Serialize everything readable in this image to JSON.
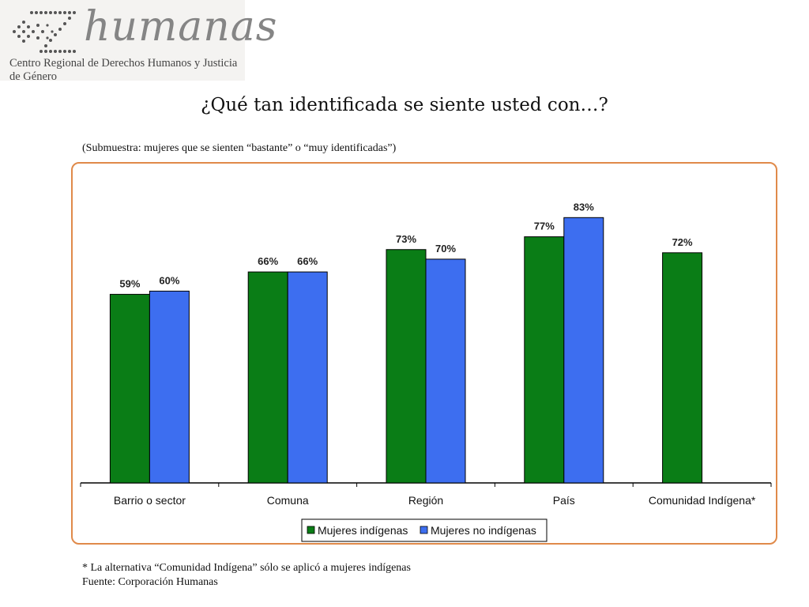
{
  "logo": {
    "wordmark": "humanas",
    "subtitle": "Centro Regional de Derechos Humanos y Justicia de Género"
  },
  "title": "¿Qué tan identificada se siente usted con…?",
  "subtitle": "(Submuestra: mujeres que se sienten “bastante” o “muy identificadas”)",
  "footnote": {
    "line1": "* La alternativa “Comunidad Indígena” sólo se aplicó a mujeres indígenas",
    "line2": "Fuente: Corporación Humanas"
  },
  "colors": {
    "frame": "#e08a4a",
    "series1": "#0a7d16",
    "series2": "#3d6ef0"
  },
  "chart_data": {
    "type": "bar",
    "categories": [
      "Barrio o sector",
      "Comuna",
      "Región",
      "País",
      "Comunidad Indígena*"
    ],
    "series": [
      {
        "name": "Mujeres indígenas",
        "values": [
          59,
          66,
          73,
          77,
          72
        ],
        "labels": [
          "59%",
          "66%",
          "73%",
          "77%",
          "72%"
        ],
        "color": "#0a7d16"
      },
      {
        "name": "Mujeres no indígenas",
        "values": [
          60,
          66,
          70,
          83,
          null
        ],
        "labels": [
          "60%",
          "66%",
          "70%",
          "83%",
          ""
        ],
        "color": "#3d6ef0"
      }
    ],
    "ylim": [
      0,
      90
    ],
    "legend_position": "bottom",
    "grid": false
  }
}
